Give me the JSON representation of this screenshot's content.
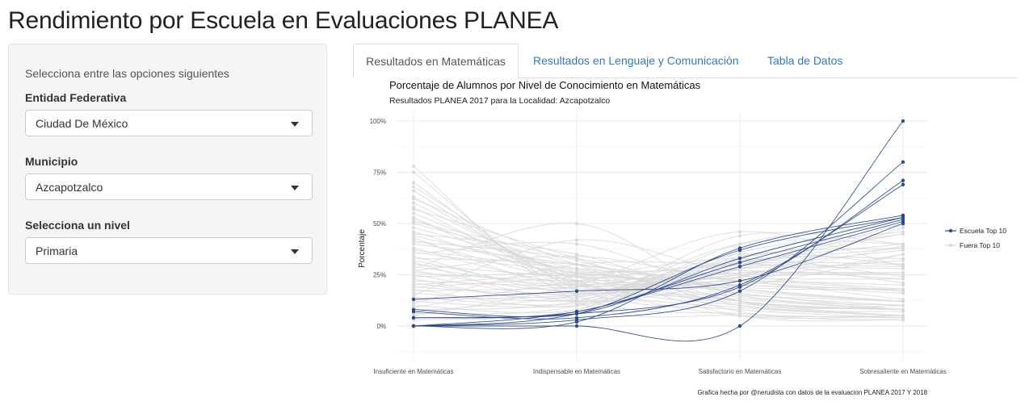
{
  "app": {
    "title": "Rendimiento por Escuela en Evaluaciones PLANEA"
  },
  "sidebar": {
    "hint": "Selecciona entre las opciones siguientes",
    "fields": [
      {
        "label": "Entidad Federativa",
        "value": "Ciudad De México"
      },
      {
        "label": "Municipio",
        "value": "Azcapotzalco"
      },
      {
        "label": "Selecciona un nivel",
        "value": "Primaria"
      }
    ]
  },
  "tabs": [
    {
      "label": "Resultados en Matemáticas",
      "active": true
    },
    {
      "label": "Resultados en Lenguaje y Comunicación",
      "active": false
    },
    {
      "label": "Tabla de Datos",
      "active": false
    }
  ],
  "chart_data": {
    "type": "line",
    "title": "Porcentaje de Alumnos por Nivel de Conocimiento en Matemáticas",
    "subtitle": "Resultados PLANEA  2017 para la Localidad:  Azcapotzalco",
    "caption": "Grafica hecha por @nerudista con datos de la evaluacion PLANEA 2017 Y 2018",
    "xlabel": "",
    "ylabel": "Porcentaje",
    "categories": [
      "Insuficiente en Matemáticas",
      "Indispensable en Matemáticas",
      "Satisfactorio en Matemáticas",
      "Sobresaliente en Matemáticas"
    ],
    "y_ticks": [
      "0%",
      "25%",
      "50%",
      "75%",
      "100%"
    ],
    "ylim": [
      -0.13,
      1.05
    ],
    "grid": true,
    "legend_position": "right",
    "colors": {
      "top10": "#2c4a8c",
      "other": "#d9d9d9"
    },
    "legend": [
      {
        "name": "Escuela Top 10",
        "color": "#2c4a8c"
      },
      {
        "name": "Fuera Top 10",
        "color": "#d9d9d9"
      }
    ],
    "series": [
      {
        "group": "Escuela Top 10",
        "values": [
          0.0,
          0.0,
          0.0,
          1.0
        ]
      },
      {
        "group": "Escuela Top 10",
        "values": [
          0.0,
          0.03,
          0.17,
          0.8
        ]
      },
      {
        "group": "Escuela Top 10",
        "values": [
          0.04,
          0.06,
          0.19,
          0.71
        ]
      },
      {
        "group": "Escuela Top 10",
        "values": [
          0.07,
          0.04,
          0.2,
          0.69
        ]
      },
      {
        "group": "Escuela Top 10",
        "values": [
          0.0,
          0.02,
          0.38,
          0.54
        ]
      },
      {
        "group": "Escuela Top 10",
        "values": [
          0.0,
          0.06,
          0.37,
          0.53
        ]
      },
      {
        "group": "Escuela Top 10",
        "values": [
          0.08,
          0.06,
          0.33,
          0.53
        ]
      },
      {
        "group": "Escuela Top 10",
        "values": [
          0.04,
          0.07,
          0.31,
          0.52
        ]
      },
      {
        "group": "Escuela Top 10",
        "values": [
          0.0,
          0.07,
          0.29,
          0.51
        ]
      },
      {
        "group": "Escuela Top 10",
        "values": [
          0.13,
          0.17,
          0.22,
          0.5
        ]
      },
      {
        "group": "Fuera Top 10",
        "values": [
          0.78,
          0.12,
          0.05,
          0.05
        ]
      },
      {
        "group": "Fuera Top 10",
        "values": [
          0.75,
          0.15,
          0.06,
          0.04
        ]
      },
      {
        "group": "Fuera Top 10",
        "values": [
          0.7,
          0.18,
          0.08,
          0.04
        ]
      },
      {
        "group": "Fuera Top 10",
        "values": [
          0.66,
          0.2,
          0.09,
          0.05
        ]
      },
      {
        "group": "Fuera Top 10",
        "values": [
          0.63,
          0.22,
          0.1,
          0.05
        ]
      },
      {
        "group": "Fuera Top 10",
        "values": [
          0.6,
          0.24,
          0.11,
          0.05
        ]
      },
      {
        "group": "Fuera Top 10",
        "values": [
          0.58,
          0.21,
          0.13,
          0.08
        ]
      },
      {
        "group": "Fuera Top 10",
        "values": [
          0.55,
          0.25,
          0.12,
          0.08
        ]
      },
      {
        "group": "Fuera Top 10",
        "values": [
          0.52,
          0.26,
          0.14,
          0.08
        ]
      },
      {
        "group": "Fuera Top 10",
        "values": [
          0.5,
          0.3,
          0.12,
          0.08
        ]
      },
      {
        "group": "Fuera Top 10",
        "values": [
          0.48,
          0.28,
          0.16,
          0.08
        ]
      },
      {
        "group": "Fuera Top 10",
        "values": [
          0.46,
          0.24,
          0.18,
          0.12
        ]
      },
      {
        "group": "Fuera Top 10",
        "values": [
          0.44,
          0.27,
          0.17,
          0.12
        ]
      },
      {
        "group": "Fuera Top 10",
        "values": [
          0.42,
          0.22,
          0.2,
          0.16
        ]
      },
      {
        "group": "Fuera Top 10",
        "values": [
          0.4,
          0.3,
          0.18,
          0.12
        ]
      },
      {
        "group": "Fuera Top 10",
        "values": [
          0.38,
          0.2,
          0.22,
          0.2
        ]
      },
      {
        "group": "Fuera Top 10",
        "values": [
          0.36,
          0.26,
          0.2,
          0.18
        ]
      },
      {
        "group": "Fuera Top 10",
        "values": [
          0.35,
          0.4,
          0.15,
          0.1
        ]
      },
      {
        "group": "Fuera Top 10",
        "values": [
          0.34,
          0.16,
          0.25,
          0.25
        ]
      },
      {
        "group": "Fuera Top 10",
        "values": [
          0.32,
          0.18,
          0.24,
          0.26
        ]
      },
      {
        "group": "Fuera Top 10",
        "values": [
          0.3,
          0.24,
          0.23,
          0.23
        ]
      },
      {
        "group": "Fuera Top 10",
        "values": [
          0.29,
          0.2,
          0.3,
          0.21
        ]
      },
      {
        "group": "Fuera Top 10",
        "values": [
          0.28,
          0.5,
          0.12,
          0.1
        ]
      },
      {
        "group": "Fuera Top 10",
        "values": [
          0.27,
          0.17,
          0.28,
          0.28
        ]
      },
      {
        "group": "Fuera Top 10",
        "values": [
          0.26,
          0.22,
          0.26,
          0.26
        ]
      },
      {
        "group": "Fuera Top 10",
        "values": [
          0.25,
          0.15,
          0.3,
          0.3
        ]
      },
      {
        "group": "Fuera Top 10",
        "values": [
          0.24,
          0.26,
          0.27,
          0.23
        ]
      },
      {
        "group": "Fuera Top 10",
        "values": [
          0.23,
          0.12,
          0.32,
          0.33
        ]
      },
      {
        "group": "Fuera Top 10",
        "values": [
          0.22,
          0.2,
          0.26,
          0.32
        ]
      },
      {
        "group": "Fuera Top 10",
        "values": [
          0.21,
          0.14,
          0.35,
          0.3
        ]
      },
      {
        "group": "Fuera Top 10",
        "values": [
          0.2,
          0.25,
          0.2,
          0.35
        ]
      },
      {
        "group": "Fuera Top 10",
        "values": [
          0.19,
          0.16,
          0.28,
          0.37
        ]
      },
      {
        "group": "Fuera Top 10",
        "values": [
          0.18,
          0.1,
          0.34,
          0.38
        ]
      },
      {
        "group": "Fuera Top 10",
        "values": [
          0.17,
          0.19,
          0.25,
          0.39
        ]
      },
      {
        "group": "Fuera Top 10",
        "values": [
          0.16,
          0.13,
          0.31,
          0.4
        ]
      },
      {
        "group": "Fuera Top 10",
        "values": [
          0.15,
          0.42,
          0.25,
          0.18
        ]
      },
      {
        "group": "Fuera Top 10",
        "values": [
          0.14,
          0.11,
          0.3,
          0.45
        ]
      },
      {
        "group": "Fuera Top 10",
        "values": [
          0.13,
          0.15,
          0.24,
          0.48
        ]
      },
      {
        "group": "Fuera Top 10",
        "values": [
          0.12,
          0.1,
          0.28,
          0.5
        ]
      },
      {
        "group": "Fuera Top 10",
        "values": [
          0.1,
          0.08,
          0.36,
          0.46
        ]
      },
      {
        "group": "Fuera Top 10",
        "values": [
          0.08,
          0.12,
          0.4,
          0.4
        ]
      },
      {
        "group": "Fuera Top 10",
        "values": [
          0.06,
          0.1,
          0.44,
          0.4
        ]
      },
      {
        "group": "Fuera Top 10",
        "values": [
          0.05,
          0.2,
          0.46,
          0.29
        ]
      },
      {
        "group": "Fuera Top 10",
        "values": [
          0.03,
          0.08,
          0.4,
          0.49
        ]
      },
      {
        "group": "Fuera Top 10",
        "values": [
          0.62,
          0.3,
          0.05,
          0.03
        ]
      },
      {
        "group": "Fuera Top 10",
        "values": [
          0.57,
          0.33,
          0.07,
          0.03
        ]
      },
      {
        "group": "Fuera Top 10",
        "values": [
          0.53,
          0.2,
          0.15,
          0.12
        ]
      },
      {
        "group": "Fuera Top 10",
        "values": [
          0.45,
          0.35,
          0.12,
          0.08
        ]
      },
      {
        "group": "Fuera Top 10",
        "values": [
          0.41,
          0.33,
          0.16,
          0.1
        ]
      },
      {
        "group": "Fuera Top 10",
        "values": [
          0.37,
          0.28,
          0.22,
          0.13
        ]
      },
      {
        "group": "Fuera Top 10",
        "values": [
          0.33,
          0.3,
          0.19,
          0.18
        ]
      },
      {
        "group": "Fuera Top 10",
        "values": [
          0.31,
          0.12,
          0.22,
          0.35
        ]
      },
      {
        "group": "Fuera Top 10",
        "values": [
          0.11,
          0.3,
          0.3,
          0.29
        ]
      },
      {
        "group": "Fuera Top 10",
        "values": [
          0.09,
          0.22,
          0.31,
          0.38
        ]
      },
      {
        "group": "Fuera Top 10",
        "values": [
          0.68,
          0.22,
          0.05,
          0.05
        ]
      },
      {
        "group": "Fuera Top 10",
        "values": [
          0.51,
          0.32,
          0.1,
          0.07
        ]
      },
      {
        "group": "Fuera Top 10",
        "values": [
          0.43,
          0.18,
          0.22,
          0.17
        ]
      },
      {
        "group": "Fuera Top 10",
        "values": [
          0.27,
          0.34,
          0.22,
          0.17
        ]
      },
      {
        "group": "Fuera Top 10",
        "values": [
          0.19,
          0.24,
          0.33,
          0.24
        ]
      },
      {
        "group": "Fuera Top 10",
        "values": [
          0.07,
          0.15,
          0.33,
          0.45
        ]
      }
    ]
  }
}
